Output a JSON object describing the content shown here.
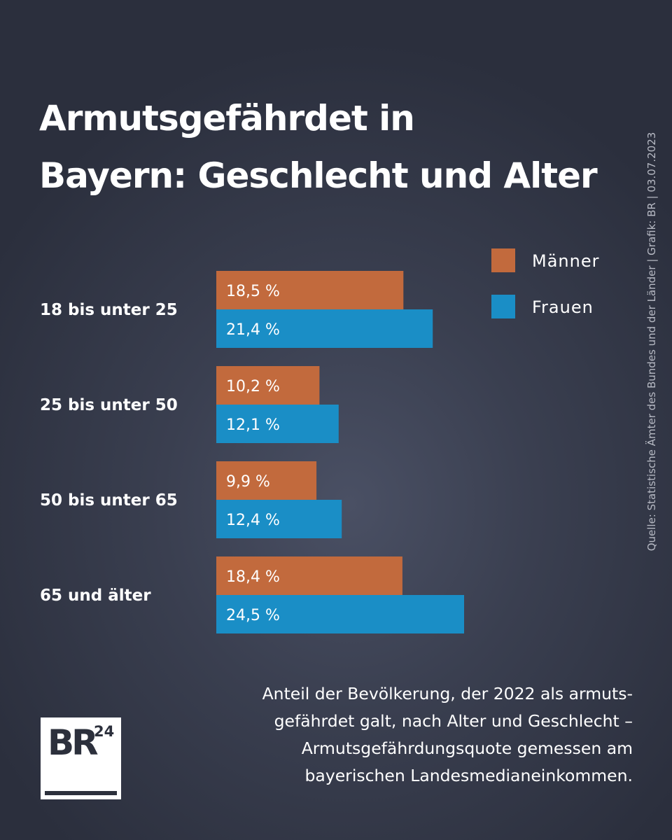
{
  "title_lines": [
    "Armutsgefährdet in",
    "Bayern: Geschlecht und Alter"
  ],
  "source": "Quelle: Statistische Ämter des Bundes und der Länder | Grafik: BR | 03.07.2023",
  "caption_lines": [
    "Anteil der Bevölkerung, der 2022 als armuts-",
    "gefährdet galt, nach Alter und Geschlecht –",
    "Armutsgefährdungsquote gemessen am",
    "bayerischen Landesmedianeinkommen."
  ],
  "logo": {
    "main": "BR",
    "sup": "24"
  },
  "colors": {
    "maenner": "#c26a3d",
    "frauen": "#1a8ec6"
  },
  "chart_data": {
    "type": "bar",
    "orientation": "horizontal",
    "categories": [
      "18 bis unter 25",
      "25 bis unter 50",
      "50 bis unter 65",
      "65 und älter"
    ],
    "series": [
      {
        "name": "Männer",
        "values": [
          18.5,
          10.2,
          9.9,
          18.4
        ],
        "labels": [
          "18,5 %",
          "10,2 %",
          "9,9 %",
          "18,4 %"
        ]
      },
      {
        "name": "Frauen",
        "values": [
          21.4,
          12.1,
          12.4,
          24.5
        ],
        "labels": [
          "21,4 %",
          "12,1 %",
          "12,4 %",
          "24,5 %"
        ]
      }
    ],
    "legend_position": "top-right",
    "grid": false
  }
}
